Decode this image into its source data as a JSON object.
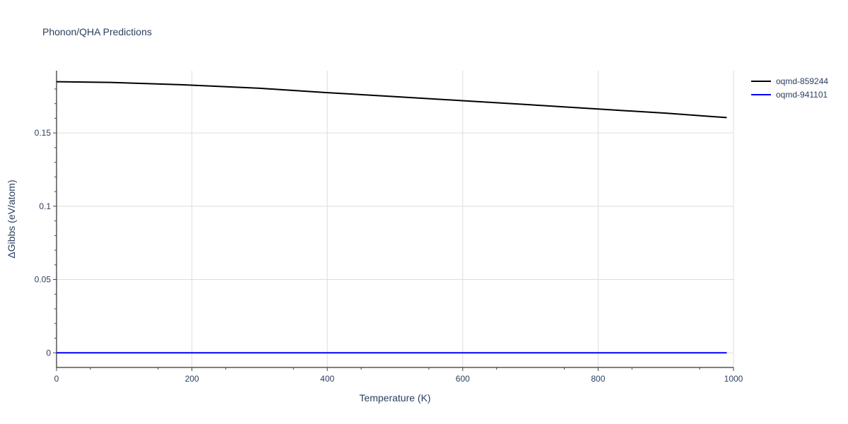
{
  "chart_data": {
    "type": "line",
    "title": "Phonon/QHA Predictions",
    "xlabel": "Temperature (K)",
    "ylabel": "ΔGibbs (eV/atom)",
    "xlim": [
      0,
      1000
    ],
    "ylim": [
      -0.01,
      0.1925
    ],
    "x_ticks": [
      0,
      200,
      400,
      600,
      800,
      1000
    ],
    "x_tick_labels": [
      "0",
      "200",
      "400",
      "600",
      "800",
      "1000"
    ],
    "y_ticks": [
      0,
      0.05,
      0.1,
      0.15
    ],
    "y_tick_labels": [
      "0",
      "0.05",
      "0.1",
      "0.15"
    ],
    "grid": true,
    "legend_position": "top-right",
    "series": [
      {
        "name": "oqmd-859244",
        "color": "#000000",
        "x": [
          0,
          80,
          180,
          300,
          400,
          500,
          600,
          700,
          800,
          900,
          990
        ],
        "y": [
          0.185,
          0.1845,
          0.183,
          0.1805,
          0.1775,
          0.1748,
          0.172,
          0.1692,
          0.1663,
          0.1635,
          0.1605
        ]
      },
      {
        "name": "oqmd-941101",
        "color": "#0000ff",
        "x": [
          0,
          990
        ],
        "y": [
          0,
          0
        ]
      }
    ]
  }
}
